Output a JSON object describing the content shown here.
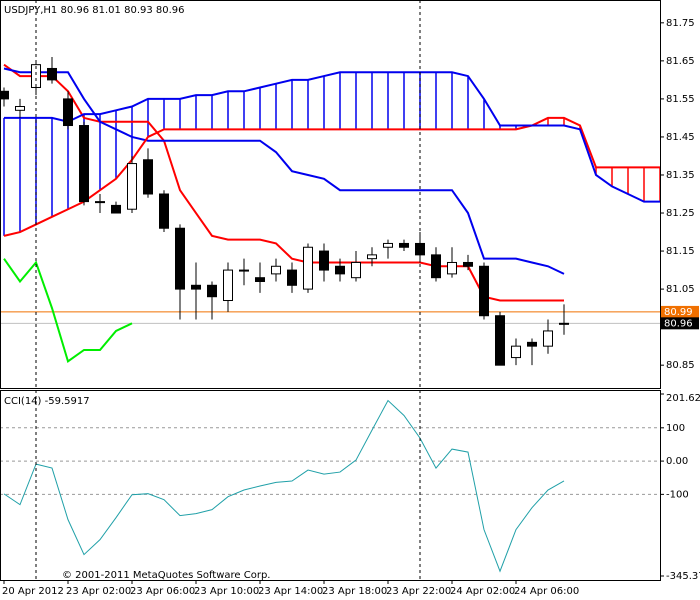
{
  "chart_data": [
    {
      "type": "candlestick",
      "title": "USDJPY,H1 80.96 81.01 80.93 80.96",
      "categories": [
        "20 Apr 2012",
        null,
        null,
        null,
        "23 Apr 02:00",
        null,
        null,
        null,
        "23 Apr 06:00",
        null,
        null,
        null,
        "23 Apr 10:00",
        null,
        null,
        null,
        "23 Apr 14:00",
        null,
        null,
        null,
        "23 Apr 18:00",
        null,
        null,
        null,
        "23 Apr 22:00",
        null,
        null,
        null,
        "24 Apr 02:00",
        null,
        null,
        null,
        "24 Apr 06:00",
        null,
        null,
        null,
        null,
        null,
        null,
        null,
        null,
        null
      ],
      "open": [
        81.57,
        81.52,
        81.58,
        81.63,
        81.55,
        81.48,
        81.28,
        81.27,
        81.26,
        81.39,
        81.3,
        81.21,
        81.06,
        81.06,
        81.02,
        81.1,
        81.08,
        81.09,
        81.1,
        81.05,
        81.15,
        81.11,
        81.08,
        81.13,
        81.16,
        81.17,
        81.17,
        81.14,
        81.09,
        81.12,
        81.11,
        80.98,
        80.87,
        80.91,
        80.9,
        80.96,
        null,
        null,
        null,
        null,
        null,
        null
      ],
      "high": [
        81.58,
        81.55,
        81.65,
        81.66,
        81.57,
        81.49,
        81.3,
        81.28,
        81.4,
        81.42,
        81.31,
        81.22,
        81.12,
        81.07,
        81.12,
        81.13,
        81.12,
        81.13,
        81.12,
        81.17,
        81.17,
        81.13,
        81.15,
        81.16,
        81.18,
        81.18,
        81.2,
        81.16,
        81.16,
        81.14,
        81.12,
        80.99,
        80.92,
        80.92,
        80.97,
        81.01,
        null,
        null,
        null,
        null,
        null,
        null
      ],
      "low": [
        81.53,
        81.5,
        81.56,
        81.59,
        81.47,
        81.27,
        81.25,
        81.25,
        81.25,
        81.29,
        81.2,
        80.97,
        80.97,
        80.97,
        80.99,
        81.06,
        81.04,
        81.07,
        81.04,
        81.04,
        81.07,
        81.07,
        81.07,
        81.11,
        81.13,
        81.15,
        81.12,
        81.07,
        81.08,
        81.1,
        80.97,
        80.85,
        80.85,
        80.85,
        80.88,
        80.93,
        null,
        null,
        null,
        null,
        null,
        null
      ],
      "close": [
        81.55,
        81.53,
        81.64,
        81.6,
        81.48,
        81.28,
        81.28,
        81.25,
        81.38,
        81.3,
        81.21,
        81.05,
        81.05,
        81.03,
        81.1,
        81.1,
        81.07,
        81.11,
        81.06,
        81.16,
        81.1,
        81.09,
        81.12,
        81.14,
        81.17,
        81.16,
        81.14,
        81.08,
        81.12,
        81.11,
        80.98,
        80.85,
        80.9,
        80.9,
        80.94,
        80.96,
        null,
        null,
        null,
        null,
        null,
        null
      ],
      "series": [
        {
          "color": "#ff0000",
          "values": [
            81.64,
            81.61,
            81.61,
            81.61,
            81.57,
            81.5,
            81.49,
            81.49,
            81.49,
            81.49,
            81.44,
            81.31,
            81.25,
            81.19,
            81.18,
            81.18,
            81.18,
            81.17,
            81.13,
            81.12,
            81.12,
            81.12,
            81.12,
            81.12,
            81.12,
            81.12,
            81.12,
            81.11,
            81.11,
            81.11,
            81.03,
            81.02,
            81.02,
            81.02,
            81.02,
            81.02,
            null,
            null,
            null,
            null,
            null,
            null
          ]
        },
        {
          "color": "#0000ee",
          "values": [
            81.63,
            81.62,
            81.62,
            81.62,
            81.62,
            81.55,
            81.49,
            81.47,
            81.45,
            81.44,
            81.44,
            81.44,
            81.44,
            81.44,
            81.44,
            81.44,
            81.44,
            81.41,
            81.36,
            81.35,
            81.34,
            81.31,
            81.31,
            81.31,
            81.31,
            81.31,
            81.31,
            81.31,
            81.31,
            81.25,
            81.13,
            81.13,
            81.13,
            81.12,
            81.11,
            81.09,
            null,
            null,
            null,
            null,
            null,
            null
          ]
        },
        {
          "color": "#ff0000",
          "values": [
            81.19,
            81.2,
            81.22,
            81.24,
            81.26,
            81.28,
            81.31,
            81.34,
            81.39,
            81.45,
            81.47,
            81.47,
            81.47,
            81.47,
            81.47,
            81.47,
            81.47,
            81.47,
            81.47,
            81.47,
            81.47,
            81.47,
            81.47,
            81.47,
            81.47,
            81.47,
            81.47,
            81.47,
            81.47,
            81.47,
            81.47,
            81.47,
            81.47,
            81.48,
            81.5,
            81.5,
            81.48,
            81.37,
            81.37,
            81.37,
            81.37,
            81.37
          ]
        },
        {
          "color": "#0000ee",
          "values": [
            81.5,
            81.5,
            81.5,
            81.5,
            81.49,
            81.51,
            81.51,
            81.52,
            81.53,
            81.55,
            81.55,
            81.55,
            81.56,
            81.56,
            81.57,
            81.57,
            81.58,
            81.59,
            81.6,
            81.6,
            81.61,
            81.62,
            81.62,
            81.62,
            81.62,
            81.62,
            81.62,
            81.62,
            81.62,
            81.61,
            81.55,
            81.48,
            81.48,
            81.48,
            81.48,
            81.48,
            81.47,
            81.35,
            81.32,
            81.3,
            81.28,
            81.28
          ]
        },
        {
          "color": "#00ee00",
          "values": [
            81.13,
            81.07,
            81.12,
            81.0,
            80.86,
            80.89,
            80.89,
            80.94,
            80.96,
            null,
            null,
            null,
            null,
            null,
            null,
            null,
            null,
            null,
            null,
            null,
            null,
            null,
            null,
            null,
            null,
            null,
            null,
            null,
            null,
            null,
            null,
            null,
            null,
            null,
            null,
            null,
            null,
            null,
            null,
            null,
            null,
            null
          ]
        }
      ],
      "cloud": true,
      "hlines": [
        {
          "value": 80.99,
          "color": "#f07000"
        },
        {
          "value": 80.96,
          "color": "#c0c0c0"
        }
      ],
      "ylim": [
        80.79,
        81.81
      ],
      "yticks": [
        81.75,
        81.65,
        81.55,
        81.45,
        81.35,
        81.25,
        81.15,
        81.05,
        80.85
      ]
    },
    {
      "type": "line",
      "title": "CCI(14) -59.5917",
      "annotation": "© 2001-2011 MetaQuotes Software Corp.",
      "color": "#20a0a8",
      "values": [
        -98.5,
        -131,
        -9,
        -21,
        -176,
        -281,
        -236,
        -170,
        -101,
        -98,
        -116,
        -164,
        -158,
        -146,
        -107,
        -87,
        -75,
        -64,
        -60,
        -27,
        -39,
        -33,
        3,
        93,
        182,
        137,
        69,
        -21,
        36,
        27,
        -206,
        -331,
        -206,
        -140,
        -87,
        -59.59,
        null,
        null,
        null,
        null,
        null,
        null
      ],
      "ylim": [
        -345.372,
        201.6218
      ],
      "yticks": [
        201.6218,
        100,
        {
          "value": 0,
          "label": "0.00"
        },
        -100,
        -345.372
      ]
    }
  ]
}
